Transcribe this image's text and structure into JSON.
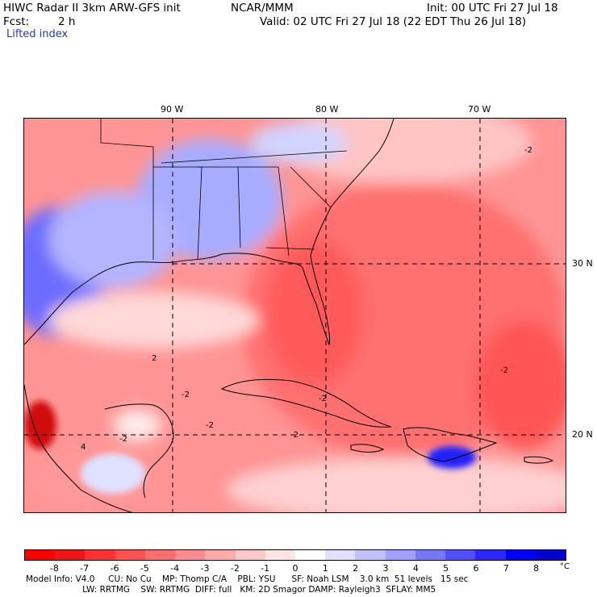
{
  "header": {
    "title_left": "HIWC Radar II 3km ARW-GFS init",
    "title_center": "NCAR/MMM",
    "init": "Init: 00 UTC Fri 27 Jul 18",
    "fcst_label": "Fcst:",
    "fcst_value": "2 h",
    "valid": "Valid: 02 UTC Fri 27 Jul 18 (22 EDT Thu 26 Jul 18)",
    "field": "Lifted index"
  },
  "map": {
    "lon_labels": [
      "90 W",
      "80 W",
      "70 W"
    ],
    "lat_labels": [
      "30 N",
      "20 N"
    ],
    "contour_labels": [
      "-2",
      "-2",
      "-2",
      "-2",
      "-2",
      "-2",
      "-2",
      "4",
      "2"
    ]
  },
  "colorbar": {
    "ticks": [
      "-8",
      "-7",
      "-6",
      "-5",
      "-4",
      "-3",
      "-2",
      "-1",
      "0",
      "1",
      "2",
      "3",
      "4",
      "5",
      "6",
      "7",
      "8"
    ],
    "unit": "°C",
    "colors": [
      "#ff0000",
      "#f01414",
      "#ff3232",
      "#ff5050",
      "#ff6e6e",
      "#ff8c8c",
      "#ffaaaa",
      "#ffc8c8",
      "#ffe4e4",
      "#ffffff",
      "#e0e0ff",
      "#c0c0ff",
      "#a0a0ff",
      "#7878ff",
      "#5050ff",
      "#2828ff",
      "#0000ff",
      "#0000d0"
    ]
  },
  "footer": {
    "line1": "Model Info: V4.0     CU: No Cu    MP: Thomp C/A    PBL: YSU      SF: Noah LSM    3.0 km  51 levels   15 sec",
    "line2": "                     LW: RRTMG    SW: RRTMG  DIFF: full   KM: 2D Smagor DAMP: Rayleigh3  SFLAY: MM5"
  }
}
